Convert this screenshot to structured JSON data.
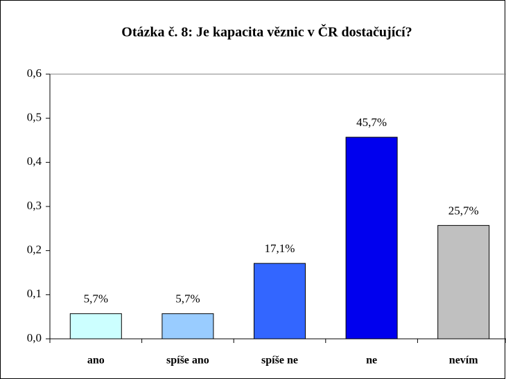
{
  "chart_data": {
    "type": "bar",
    "title": "Otázka č. 8: Je kapacita věznic v ČR dostačující?",
    "categories": [
      "ano",
      "spíše ano",
      "spíše ne",
      "ne",
      "nevím"
    ],
    "values": [
      0.057,
      0.057,
      0.171,
      0.457,
      0.257
    ],
    "value_labels": [
      "5,7%",
      "5,7%",
      "17,1%",
      "45,7%",
      "25,7%"
    ],
    "colors": [
      "#ccffff",
      "#99ccff",
      "#3366ff",
      "#0000ee",
      "#c0c0c0"
    ],
    "ylim": [
      0,
      0.6
    ],
    "yticks": [
      {
        "value": 0,
        "label": "0,0"
      },
      {
        "value": 0.1,
        "label": "0,1"
      },
      {
        "value": 0.2,
        "label": "0,2"
      },
      {
        "value": 0.3,
        "label": "0,3"
      },
      {
        "value": 0.4,
        "label": "0,4"
      },
      {
        "value": 0.5,
        "label": "0,5"
      },
      {
        "value": 0.6,
        "label": "0,6"
      }
    ],
    "grid": false
  }
}
